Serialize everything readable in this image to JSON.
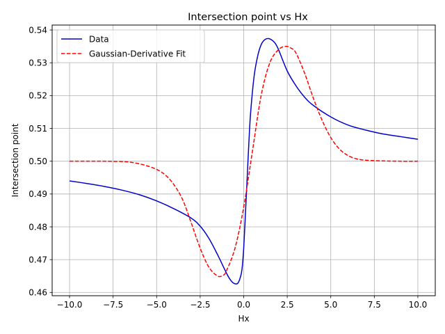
{
  "chart_data": {
    "type": "line",
    "title": "Intersection point vs Hx",
    "xlabel": "Hx",
    "ylabel": "Intersection point",
    "xlim": [
      -11,
      11
    ],
    "ylim": [
      0.459,
      0.5415
    ],
    "xticks": [
      -10.0,
      -7.5,
      -5.0,
      -2.5,
      0.0,
      2.5,
      5.0,
      7.5,
      10.0
    ],
    "xtick_labels": [
      "−10.0",
      "−7.5",
      "−5.0",
      "−2.5",
      "0.0",
      "2.5",
      "5.0",
      "7.5",
      "10.0"
    ],
    "yticks": [
      0.46,
      0.47,
      0.48,
      0.49,
      0.5,
      0.51,
      0.52,
      0.53,
      0.54
    ],
    "ytick_labels": [
      "0.46",
      "0.47",
      "0.48",
      "0.49",
      "0.50",
      "0.51",
      "0.52",
      "0.53",
      "0.54"
    ],
    "grid": true,
    "legend_position": "top-left",
    "series": [
      {
        "name": "Data",
        "color": "#0000cc",
        "style": "solid",
        "x": [
          -10,
          -9,
          -8,
          -7,
          -6,
          -5,
          -4,
          -3,
          -2.5,
          -2,
          -1.5,
          -1,
          -0.8,
          -0.6,
          -0.4,
          -0.3,
          -0.2,
          -0.1,
          0,
          0.1,
          0.2,
          0.3,
          0.4,
          0.6,
          0.8,
          1,
          1.2,
          1.4,
          1.6,
          1.8,
          2,
          2.5,
          3,
          3.5,
          4,
          5,
          6,
          7,
          8,
          9,
          10
        ],
        "y": [
          0.494,
          0.4932,
          0.4923,
          0.4912,
          0.4898,
          0.4879,
          0.4855,
          0.4826,
          0.4802,
          0.4765,
          0.4715,
          0.466,
          0.4641,
          0.4629,
          0.4626,
          0.4631,
          0.4645,
          0.467,
          0.4735,
          0.484,
          0.495,
          0.506,
          0.515,
          0.526,
          0.532,
          0.5355,
          0.537,
          0.5374,
          0.537,
          0.536,
          0.534,
          0.5275,
          0.523,
          0.5195,
          0.517,
          0.5135,
          0.511,
          0.5095,
          0.5083,
          0.5075,
          0.5067
        ]
      },
      {
        "name": "Gaussian-Derivative Fit",
        "color": "#ff0000",
        "style": "dashed",
        "x": [
          -10,
          -9,
          -8,
          -7,
          -6.5,
          -6,
          -5.5,
          -5,
          -4.5,
          -4,
          -3.5,
          -3,
          -2.5,
          -2,
          -1.5,
          -1.2,
          -1,
          -0.5,
          0,
          0.5,
          1,
          1.5,
          2,
          2.4,
          2.7,
          3,
          3.5,
          4,
          4.5,
          5,
          5.5,
          6,
          6.5,
          7,
          8,
          9,
          10
        ],
        "y": [
          0.5,
          0.5,
          0.5,
          0.4999,
          0.4997,
          0.4992,
          0.4985,
          0.4975,
          0.4958,
          0.4928,
          0.4882,
          0.481,
          0.4735,
          0.4677,
          0.465,
          0.4652,
          0.4665,
          0.4735,
          0.486,
          0.503,
          0.52,
          0.53,
          0.534,
          0.535,
          0.5345,
          0.533,
          0.5268,
          0.5192,
          0.5125,
          0.5072,
          0.5037,
          0.5017,
          0.5007,
          0.5003,
          0.5001,
          0.5,
          0.5
        ]
      }
    ]
  }
}
